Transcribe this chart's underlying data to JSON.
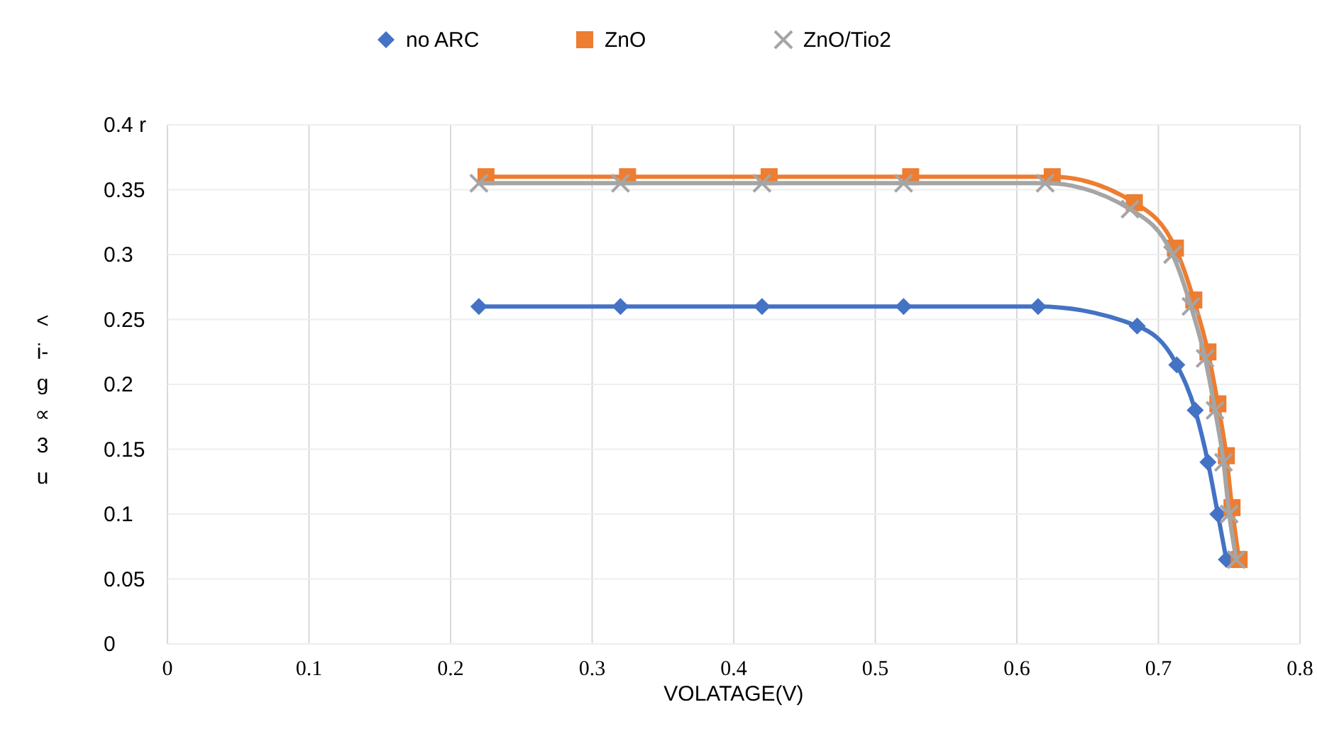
{
  "chart_data": {
    "type": "line",
    "xlabel": "VOLATAGE(V)",
    "ylabel": "< i- g ∝ 3 u",
    "xlim": [
      0,
      0.8
    ],
    "xticks": [
      0,
      0.1,
      0.2,
      0.3,
      0.4,
      0.5,
      0.6,
      0.7,
      0.8
    ],
    "ylim": [
      0,
      0.4
    ],
    "yticks": [
      0,
      0.05,
      0.1,
      0.15,
      0.2,
      0.25,
      0.3,
      0.35,
      {
        "value": 0.4,
        "label": "0.4  r"
      }
    ],
    "grid": true,
    "legend": "top",
    "series": [
      {
        "name": "no ARC",
        "color": "#4472c4",
        "marker": "diamond",
        "x": [
          0.22,
          0.32,
          0.42,
          0.52,
          0.615,
          0.685,
          0.713,
          0.726,
          0.735,
          0.742,
          0.748
        ],
        "values": [
          0.26,
          0.26,
          0.26,
          0.26,
          0.26,
          0.245,
          0.215,
          0.18,
          0.14,
          0.1,
          0.065
        ]
      },
      {
        "name": "ZnO",
        "color": "#ed7d31",
        "marker": "square",
        "x": [
          0.225,
          0.325,
          0.425,
          0.525,
          0.625,
          0.683,
          0.712,
          0.725,
          0.735,
          0.742,
          0.748,
          0.752,
          0.757
        ],
        "values": [
          0.36,
          0.36,
          0.36,
          0.36,
          0.36,
          0.34,
          0.305,
          0.265,
          0.225,
          0.185,
          0.145,
          0.105,
          0.065
        ]
      },
      {
        "name": "ZnO/Tio2",
        "color": "#a5a5a5",
        "marker": "cross",
        "x": [
          0.22,
          0.32,
          0.42,
          0.52,
          0.62,
          0.68,
          0.71,
          0.723,
          0.733,
          0.74,
          0.746,
          0.75,
          0.755
        ],
        "values": [
          0.355,
          0.355,
          0.355,
          0.355,
          0.355,
          0.335,
          0.3,
          0.26,
          0.22,
          0.18,
          0.14,
          0.1,
          0.065
        ]
      }
    ]
  }
}
